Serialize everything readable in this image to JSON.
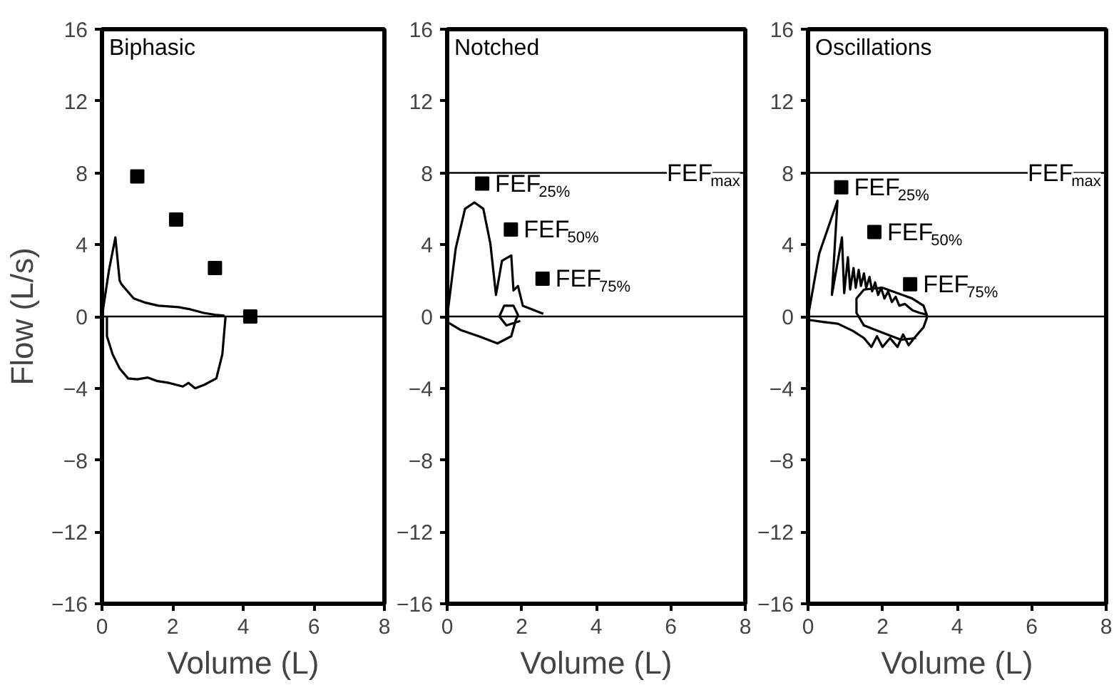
{
  "chart_data": [
    {
      "type": "line",
      "title": "Biphasic",
      "xlabel": "Volume (L)",
      "ylabel": "Flow (L/s)",
      "xlim": [
        0,
        8
      ],
      "ylim": [
        -16,
        16
      ],
      "xticks": [
        0,
        2,
        4,
        6,
        8
      ],
      "yticks": [
        -16,
        -12,
        -8,
        -4,
        0,
        4,
        8,
        12,
        16
      ],
      "grid": false,
      "series": [
        {
          "color": "#000000",
          "x": [
            0,
            0.2,
            0.38,
            0.5,
            0.55,
            0.79,
            0.9,
            1.21,
            1.6,
            2.17,
            2.5,
            2.88,
            3.2,
            3.47
          ],
          "values": [
            0,
            2.6,
            4.4,
            2.0,
            1.8,
            1.25,
            1.0,
            0.78,
            0.6,
            0.52,
            0.4,
            0.2,
            0.1,
            0.05
          ]
        },
        {
          "color": "#000000",
          "x": [
            0.14,
            0.14,
            0.3,
            0.5,
            0.74,
            1.0,
            1.3,
            1.57,
            1.9,
            2.29,
            2.45,
            2.64,
            2.9,
            3.24,
            3.41,
            3.5
          ],
          "values": [
            0,
            -1.1,
            -2.1,
            -2.9,
            -3.45,
            -3.5,
            -3.4,
            -3.6,
            -3.7,
            -3.9,
            -3.7,
            -4.0,
            -3.8,
            -3.45,
            -2.1,
            0
          ]
        },
        {
          "type": "scatter",
          "marker": "square",
          "color": "#000000",
          "x": [
            1.0,
            2.1,
            3.2,
            4.2
          ],
          "values": [
            7.8,
            5.4,
            2.7,
            0
          ]
        }
      ],
      "ref_lines": [
        {
          "axis": "y",
          "value": 0
        }
      ]
    },
    {
      "type": "line",
      "title": "Notched",
      "xlabel": "Volume (L)",
      "xlim": [
        0,
        8
      ],
      "ylim": [
        -16,
        16
      ],
      "xticks": [
        0,
        2,
        4,
        6,
        8
      ],
      "yticks": [
        -16,
        -12,
        -8,
        -4,
        0,
        4,
        8,
        12,
        16
      ],
      "grid": false,
      "series": [
        {
          "color": "#000000",
          "x": [
            0,
            0.23,
            0.48,
            0.73,
            0.97,
            1.16,
            1.31,
            1.47,
            1.72,
            1.78,
            1.9,
            2.03,
            2.58
          ],
          "values": [
            0,
            3.8,
            6.0,
            6.35,
            6.0,
            4.05,
            1.2,
            3.1,
            3.4,
            1.45,
            1.7,
            0.6,
            0.15
          ]
        },
        {
          "color": "#000000",
          "x": [
            0,
            0.36,
            0.85,
            1.35,
            1.72,
            1.84,
            1.9,
            1.78,
            1.53,
            1.4,
            1.59,
            1.96
          ],
          "values": [
            -0.3,
            -0.75,
            -1.1,
            -1.5,
            -1.1,
            -0.2,
            0.08,
            0.6,
            0.6,
            0,
            -0.5,
            -0.25
          ]
        },
        {
          "type": "scatter",
          "marker": "square",
          "color": "#000000",
          "x": [
            0.94,
            1.71,
            2.56
          ],
          "values": [
            7.4,
            4.84,
            2.1
          ]
        }
      ],
      "ref_lines": [
        {
          "axis": "y",
          "value": 0
        },
        {
          "axis": "y",
          "value": 8,
          "label": "FEF$_{max}$"
        }
      ],
      "annotations": [
        {
          "text": "FEF$_{25%}$",
          "x": 0.94,
          "y": 7.4
        },
        {
          "text": "FEF$_{50%}$",
          "x": 1.71,
          "y": 4.84
        },
        {
          "text": "FEF$_{75%}$",
          "x": 2.56,
          "y": 2.1
        }
      ]
    },
    {
      "type": "line",
      "title": "Oscillations",
      "xlabel": "Volume (L)",
      "xlim": [
        0,
        8
      ],
      "ylim": [
        -16,
        16
      ],
      "xticks": [
        0,
        2,
        4,
        6,
        8
      ],
      "yticks": [
        -16,
        -12,
        -8,
        -4,
        0,
        4,
        8,
        12,
        16
      ],
      "grid": false,
      "series": [
        {
          "color": "#000000",
          "x": [
            0,
            0.3,
            0.79,
            0.64,
            0.91,
            0.97,
            1.07,
            1.13,
            1.22,
            1.28,
            1.36,
            1.42,
            1.5,
            1.56,
            1.65,
            1.72,
            1.8,
            1.88,
            1.96,
            2.05,
            2.15,
            2.25,
            2.35,
            2.45,
            2.6,
            2.8,
            3.0,
            3.2
          ],
          "values": [
            0,
            3.5,
            6.45,
            1.2,
            4.4,
            1.3,
            3.3,
            1.5,
            2.7,
            1.6,
            2.6,
            1.7,
            2.4,
            1.6,
            2.2,
            1.4,
            1.9,
            1.2,
            1.6,
            1.0,
            1.4,
            0.8,
            1.1,
            0.6,
            0.7,
            0.35,
            0.2,
            0.1
          ]
        },
        {
          "color": "#000000",
          "x": [
            0.05,
            0.4,
            0.8,
            1.2,
            1.5,
            1.7,
            1.85,
            2.0,
            2.2,
            2.4,
            2.55,
            2.7,
            2.85,
            3.1,
            3.2,
            3.1,
            2.8,
            2.4,
            2.0,
            1.5,
            1.3,
            1.3,
            1.5,
            2.0,
            2.5,
            2.9
          ],
          "values": [
            -0.2,
            -0.3,
            -0.4,
            -0.8,
            -1.2,
            -1.7,
            -1.1,
            -1.7,
            -1.2,
            -1.7,
            -1.0,
            -1.6,
            -1.2,
            -0.6,
            0,
            0.6,
            1.0,
            1.3,
            1.6,
            1.5,
            1.0,
            0.2,
            -0.5,
            -0.9,
            -1.3,
            -1.2
          ]
        },
        {
          "type": "scatter",
          "marker": "square",
          "color": "#000000",
          "x": [
            0.89,
            1.78,
            2.74
          ],
          "values": [
            7.2,
            4.7,
            1.8
          ]
        }
      ],
      "ref_lines": [
        {
          "axis": "y",
          "value": 0
        },
        {
          "axis": "y",
          "value": 8,
          "label": "FEF$_{max}$"
        }
      ],
      "annotations": [
        {
          "text": "FEF$_{25%}$",
          "x": 0.89,
          "y": 7.2
        },
        {
          "text": "FEF$_{50%}$",
          "x": 1.78,
          "y": 4.7
        },
        {
          "text": "FEF$_{75%}$",
          "x": 2.74,
          "y": 1.8
        }
      ]
    }
  ]
}
